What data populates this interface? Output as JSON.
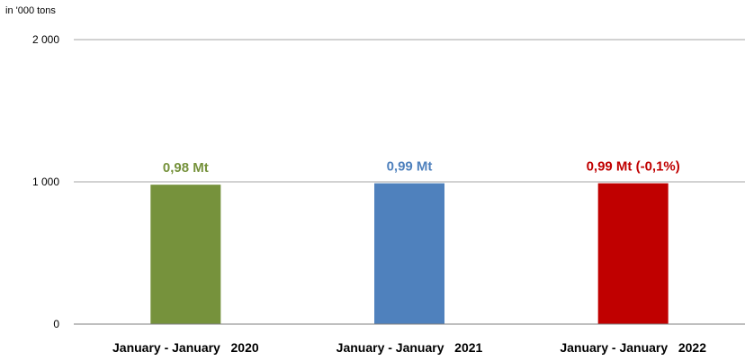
{
  "chart_data": {
    "type": "bar",
    "unit_label": "in '000 tons",
    "categories": [
      "January - January   2020",
      "January - January   2021",
      "January - January   2022"
    ],
    "values": [
      980,
      990,
      990
    ],
    "data_labels": [
      "0,98 Mt",
      "0,99 Mt",
      "0,99 Mt (-0,1%)"
    ],
    "colors": [
      "#76923c",
      "#4f81bd",
      "#c00000"
    ],
    "yticks": [
      0,
      1000,
      2000
    ],
    "ytick_labels": [
      "0",
      "1 000",
      "2 000"
    ],
    "ylim": [
      0,
      2000
    ],
    "grid": true,
    "title": "",
    "xlabel": "",
    "ylabel": ""
  }
}
